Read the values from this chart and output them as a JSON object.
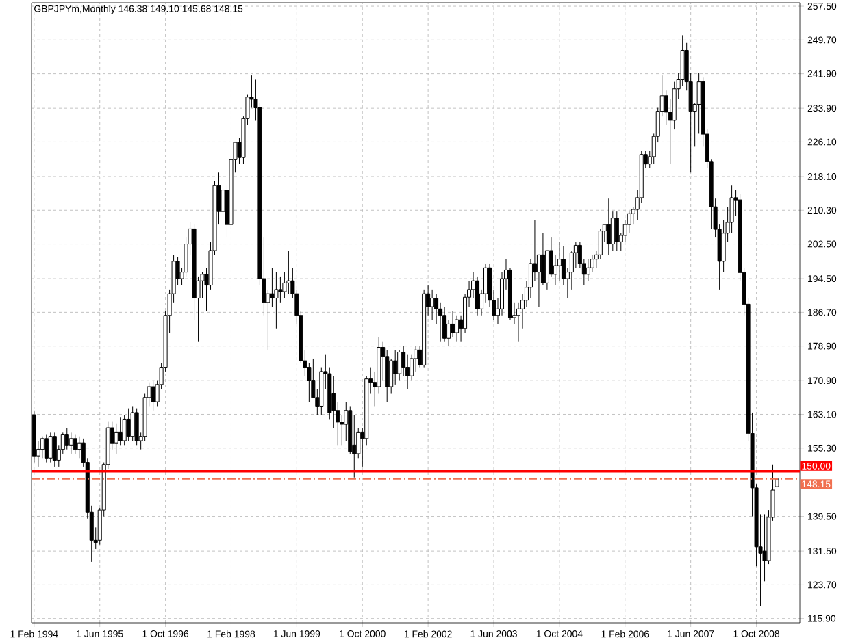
{
  "chart_data": {
    "type": "candlestick",
    "title": "GBPJPYm,Monthly  146.38 149.10 145.68 148.15",
    "x": [
      "1994-02",
      "1994-03",
      "1994-04",
      "1994-05",
      "1994-06",
      "1994-07",
      "1994-08",
      "1994-09",
      "1994-10",
      "1994-11",
      "1994-12",
      "1995-01",
      "1995-02",
      "1995-03",
      "1995-04",
      "1995-05",
      "1995-06",
      "1995-07",
      "1995-08",
      "1995-09",
      "1995-10",
      "1995-11",
      "1995-12",
      "1996-01",
      "1996-02",
      "1996-03",
      "1996-04",
      "1996-05",
      "1996-06",
      "1996-07",
      "1996-08",
      "1996-09",
      "1996-10",
      "1996-11",
      "1996-12",
      "1997-01",
      "1997-02",
      "1997-03",
      "1997-04",
      "1997-05",
      "1997-06",
      "1997-07",
      "1997-08",
      "1997-09",
      "1997-10",
      "1997-11",
      "1997-12",
      "1998-01",
      "1998-02",
      "1998-03",
      "1998-04",
      "1998-05",
      "1998-06",
      "1998-07",
      "1998-08",
      "1998-09",
      "1998-10",
      "1998-11",
      "1998-12",
      "1999-01",
      "1999-02",
      "1999-03",
      "1999-04",
      "1999-05",
      "1999-06",
      "1999-07",
      "1999-08",
      "1999-09",
      "1999-10",
      "1999-11",
      "1999-12",
      "2000-01",
      "2000-02",
      "2000-03",
      "2000-04",
      "2000-05",
      "2000-06",
      "2000-07",
      "2000-08",
      "2000-09",
      "2000-10",
      "2000-11",
      "2000-12",
      "2001-01",
      "2001-02",
      "2001-03",
      "2001-04",
      "2001-05",
      "2001-06",
      "2001-07",
      "2001-08",
      "2001-09",
      "2001-10",
      "2001-11",
      "2001-12",
      "2002-01",
      "2002-02",
      "2002-03",
      "2002-04",
      "2002-05",
      "2002-06",
      "2002-07",
      "2002-08",
      "2002-09",
      "2002-10",
      "2002-11",
      "2002-12",
      "2003-01",
      "2003-02",
      "2003-03",
      "2003-04",
      "2003-05",
      "2003-06",
      "2003-07",
      "2003-08",
      "2003-09",
      "2003-10",
      "2003-11",
      "2003-12",
      "2004-01",
      "2004-02",
      "2004-03",
      "2004-04",
      "2004-05",
      "2004-06",
      "2004-07",
      "2004-08",
      "2004-09",
      "2004-10",
      "2004-11",
      "2004-12",
      "2005-01",
      "2005-02",
      "2005-03",
      "2005-04",
      "2005-05",
      "2005-06",
      "2005-07",
      "2005-08",
      "2005-09",
      "2005-10",
      "2005-11",
      "2005-12",
      "2006-01",
      "2006-02",
      "2006-03",
      "2006-04",
      "2006-05",
      "2006-06",
      "2006-07",
      "2006-08",
      "2006-09",
      "2006-10",
      "2006-11",
      "2006-12",
      "2007-01",
      "2007-02",
      "2007-03",
      "2007-04",
      "2007-05",
      "2007-06",
      "2007-07",
      "2007-08",
      "2007-09",
      "2007-10",
      "2007-11",
      "2007-12",
      "2008-01",
      "2008-02",
      "2008-03",
      "2008-04",
      "2008-05",
      "2008-06",
      "2008-07",
      "2008-08",
      "2008-09",
      "2008-10",
      "2008-11",
      "2008-12",
      "2009-01",
      "2009-02",
      "2009-03"
    ],
    "ohlc": [
      [
        163,
        164,
        152,
        153.5
      ],
      [
        153.5,
        157,
        151,
        155
      ],
      [
        155,
        158,
        153,
        157.5
      ],
      [
        157.5,
        158.5,
        152,
        153
      ],
      [
        153,
        159,
        152,
        158
      ],
      [
        158,
        159,
        151,
        152.5
      ],
      [
        152.5,
        156,
        151,
        155
      ],
      [
        155,
        159,
        154,
        158.5
      ],
      [
        158.5,
        160,
        155,
        156
      ],
      [
        156,
        159,
        154,
        157.5
      ],
      [
        157.5,
        158.5,
        154,
        155
      ],
      [
        155,
        158,
        153,
        156.5
      ],
      [
        156.5,
        157.5,
        151,
        152
      ],
      [
        152,
        153,
        139,
        140.5
      ],
      [
        140.5,
        142,
        129,
        134
      ],
      [
        134,
        137,
        132,
        133.5
      ],
      [
        134,
        141.5,
        133,
        141
      ],
      [
        141,
        152,
        139.5,
        151.5
      ],
      [
        151.5,
        161.5,
        150.5,
        160
      ],
      [
        160,
        161.5,
        155,
        156.5
      ],
      [
        156.5,
        161,
        154,
        159
      ],
      [
        159,
        162.5,
        156,
        157
      ],
      [
        157,
        163,
        156,
        162
      ],
      [
        162,
        164.5,
        157,
        158
      ],
      [
        158,
        165,
        157,
        163.5
      ],
      [
        163.5,
        164.5,
        156,
        157
      ],
      [
        157,
        159,
        155,
        158
      ],
      [
        158,
        168,
        157,
        167
      ],
      [
        167,
        170.5,
        165,
        169.5
      ],
      [
        169.5,
        171,
        164,
        166
      ],
      [
        166,
        171,
        165,
        170
      ],
      [
        170,
        175,
        169,
        174
      ],
      [
        174,
        187,
        173,
        186
      ],
      [
        186,
        192,
        182,
        191
      ],
      [
        191,
        200,
        189,
        198.5
      ],
      [
        198.5,
        199.5,
        193,
        194.5
      ],
      [
        194.5,
        197,
        193,
        196
      ],
      [
        196,
        204,
        195,
        202.5
      ],
      [
        202.5,
        207.5,
        200,
        206
      ],
      [
        206,
        207,
        185,
        190
      ],
      [
        190,
        195,
        180,
        194
      ],
      [
        194,
        196,
        190,
        195.5
      ],
      [
        195.5,
        197,
        187,
        193
      ],
      [
        193,
        203,
        192,
        201
      ],
      [
        201,
        217,
        200,
        216
      ],
      [
        216,
        219,
        207,
        210
      ],
      [
        210,
        217,
        208,
        215
      ],
      [
        215,
        216,
        204,
        207
      ],
      [
        207,
        223,
        206,
        222
      ],
      [
        222,
        226,
        219,
        226
      ],
      [
        226,
        227,
        221,
        222.5
      ],
      [
        222.5,
        232,
        221,
        231.5
      ],
      [
        231.5,
        237,
        230,
        236.5
      ],
      [
        236.5,
        241.5,
        234,
        236
      ],
      [
        236,
        240.5,
        231,
        234
      ],
      [
        234,
        235,
        193,
        194.5
      ],
      [
        194.5,
        204,
        186,
        189
      ],
      [
        189,
        192,
        178,
        191
      ],
      [
        191,
        197,
        188,
        190
      ],
      [
        190,
        196,
        183,
        192
      ],
      [
        192,
        195,
        189,
        191.5
      ],
      [
        191.5,
        196,
        190,
        193.5
      ],
      [
        193.5,
        201,
        191,
        194
      ],
      [
        194,
        197,
        190,
        191
      ],
      [
        191,
        192,
        184,
        186
      ],
      [
        186,
        187,
        175,
        175.5
      ],
      [
        175.5,
        178,
        172,
        174
      ],
      [
        174,
        175,
        166,
        171
      ],
      [
        171,
        176,
        167,
        167
      ],
      [
        167,
        169,
        163,
        165
      ],
      [
        165,
        174,
        163,
        173
      ],
      [
        173,
        177,
        169,
        172.5
      ],
      [
        172.5,
        174,
        162,
        163.5
      ],
      [
        168,
        172,
        160,
        164
      ],
      [
        164,
        166,
        156,
        161.3
      ],
      [
        161.3,
        163,
        156,
        160.8
      ],
      [
        160.8,
        166,
        157,
        164
      ],
      [
        164,
        165,
        154,
        154.5
      ],
      [
        156,
        163,
        148.5,
        154
      ],
      [
        154,
        160,
        153,
        159
      ],
      [
        159,
        160,
        151,
        157.5
      ],
      [
        157.5,
        172,
        156,
        171.3
      ],
      [
        171.3,
        174,
        168,
        170.5
      ],
      [
        170.5,
        173,
        165,
        169.5
      ],
      [
        169.5,
        181,
        168,
        178.6
      ],
      [
        178.6,
        180,
        171,
        176.5
      ],
      [
        176.5,
        178,
        166,
        169.5
      ],
      [
        169.5,
        176,
        168,
        175.5
      ],
      [
        175.5,
        178,
        170,
        172.5
      ],
      [
        172.5,
        178,
        171,
        177.5
      ],
      [
        177.5,
        179,
        172,
        174
      ],
      [
        174,
        177,
        169,
        172
      ],
      [
        172,
        177,
        171,
        176
      ],
      [
        176,
        179,
        173,
        178
      ],
      [
        178,
        179,
        174,
        174.5
      ],
      [
        174.5,
        192,
        174,
        191
      ],
      [
        191,
        193,
        186,
        188
      ],
      [
        188,
        192,
        185,
        190
      ],
      [
        190,
        191,
        184,
        187.5
      ],
      [
        187.5,
        189,
        180,
        186
      ],
      [
        186,
        188,
        180,
        180.7
      ],
      [
        180.7,
        185,
        179,
        184
      ],
      [
        184,
        187,
        181,
        182
      ],
      [
        182,
        186,
        180,
        185
      ],
      [
        185,
        186,
        180,
        183
      ],
      [
        183,
        191,
        182,
        190.2
      ],
      [
        190.2,
        194,
        188,
        192
      ],
      [
        192,
        196,
        190,
        194
      ],
      [
        194,
        195,
        186,
        187.5
      ],
      [
        187.5,
        192,
        186,
        191
      ],
      [
        191,
        198,
        189,
        197
      ],
      [
        197,
        198,
        188,
        189.5
      ],
      [
        189.5,
        192,
        185,
        186
      ],
      [
        186,
        190,
        184,
        187.5
      ],
      [
        187.5,
        196,
        186,
        194.5
      ],
      [
        194.5,
        199,
        192,
        196.5
      ],
      [
        196.5,
        197,
        185,
        185.5
      ],
      [
        185.5,
        189,
        184,
        186
      ],
      [
        186,
        189,
        180,
        187.5
      ],
      [
        187.5,
        191,
        183,
        189.5
      ],
      [
        189.5,
        194,
        188,
        192.5
      ],
      [
        192.5,
        199,
        190,
        198
      ],
      [
        198,
        208,
        194,
        196
      ],
      [
        196,
        200,
        188,
        200
      ],
      [
        200,
        205,
        193,
        193.5
      ],
      [
        193.5,
        201,
        192,
        201
      ],
      [
        201,
        204,
        195,
        195.5
      ],
      [
        195.5,
        200,
        193,
        197.5
      ],
      [
        197.5,
        203,
        194,
        199
      ],
      [
        199,
        202,
        193,
        194.5
      ],
      [
        194.5,
        197,
        190,
        196
      ],
      [
        196,
        201,
        192,
        200.5
      ],
      [
        200.5,
        203,
        197,
        202.2
      ],
      [
        202.2,
        203,
        197,
        198
      ],
      [
        198,
        199,
        193,
        195.5
      ],
      [
        195.5,
        199,
        194,
        197
      ],
      [
        197,
        200,
        196,
        199
      ],
      [
        199,
        201,
        197,
        200
      ],
      [
        200,
        206,
        199,
        205.5
      ],
      [
        205.5,
        207,
        203,
        207
      ],
      [
        207,
        213,
        200,
        202.5
      ],
      [
        202.5,
        210,
        201,
        208.5
      ],
      [
        208.5,
        210,
        201,
        203
      ],
      [
        203,
        205,
        201,
        204.5
      ],
      [
        204.5,
        208,
        203,
        207
      ],
      [
        207,
        210,
        205,
        209.5
      ],
      [
        209.5,
        211,
        207,
        210.5
      ],
      [
        210.5,
        215,
        208,
        213.2
      ],
      [
        213.2,
        224,
        212,
        223.2
      ],
      [
        223.2,
        224,
        220,
        221
      ],
      [
        221,
        224,
        220,
        222.7
      ],
      [
        222.7,
        228,
        221,
        227.4
      ],
      [
        227.4,
        234,
        226,
        233.2
      ],
      [
        233.2,
        241.5,
        232,
        236.8
      ],
      [
        236.8,
        238,
        230,
        233
      ],
      [
        233,
        236,
        221,
        231.1
      ],
      [
        231.1,
        240,
        229,
        238.4
      ],
      [
        238.4,
        242,
        236,
        240.5
      ],
      [
        240.5,
        250.8,
        239,
        247.3
      ],
      [
        247.3,
        249,
        238,
        240
      ],
      [
        240,
        242,
        219,
        233.2
      ],
      [
        233.2,
        235,
        225,
        234.8
      ],
      [
        234.8,
        242,
        228,
        240
      ],
      [
        240,
        241,
        225,
        227.9
      ],
      [
        227.9,
        229,
        220,
        221.6
      ],
      [
        221.6,
        222,
        206,
        211.1
      ],
      [
        211.1,
        213,
        204,
        205.9
      ],
      [
        205.9,
        207,
        192,
        198.5
      ],
      [
        198.5,
        208,
        196,
        205
      ],
      [
        205,
        211,
        203,
        207.5
      ],
      [
        207.5,
        216,
        205,
        213.2
      ],
      [
        213.2,
        215,
        209,
        212.7
      ],
      [
        212.7,
        214,
        194,
        195.9
      ],
      [
        195.9,
        197,
        186,
        188.6
      ],
      [
        188.6,
        190,
        157,
        158.7
      ],
      [
        158.7,
        163.5,
        139.5,
        146.1
      ],
      [
        146.1,
        147,
        128,
        132.5
      ],
      [
        132.5,
        140,
        118.8,
        131
      ],
      [
        131.5,
        140,
        124.5,
        129.3
      ],
      [
        129.3,
        141,
        128.5,
        139.3
      ],
      [
        139.3,
        151.5,
        138.5,
        145.6
      ],
      [
        146.38,
        149.1,
        145.68,
        148.15
      ]
    ],
    "xlim": [
      "1994-01-12",
      "2009-08-19"
    ],
    "ylim": [
      114.9,
      258.3
    ],
    "xticks": [
      {
        "value": "1994-02-01",
        "label": "1 Feb 1994"
      },
      {
        "value": "1995-06-01",
        "label": "1 Jun 1995"
      },
      {
        "value": "1996-10-01",
        "label": "1 Oct 1996"
      },
      {
        "value": "1998-02-01",
        "label": "1 Feb 1998"
      },
      {
        "value": "1999-06-01",
        "label": "1 Jun 1999"
      },
      {
        "value": "2000-10-01",
        "label": "1 Oct 2000"
      },
      {
        "value": "2002-02-01",
        "label": "1 Feb 2002"
      },
      {
        "value": "2003-06-01",
        "label": "1 Jun 2003"
      },
      {
        "value": "2004-10-01",
        "label": "1 Oct 2004"
      },
      {
        "value": "2006-02-01",
        "label": "1 Feb 2006"
      },
      {
        "value": "2007-06-01",
        "label": "1 Jun 2007"
      },
      {
        "value": "2008-10-01",
        "label": "1 Oct 2008"
      }
    ],
    "yticks": [
      {
        "value": 115.9,
        "label": "115.90"
      },
      {
        "value": 123.7,
        "label": "123.70"
      },
      {
        "value": 131.5,
        "label": "131.50"
      },
      {
        "value": 139.5,
        "label": "139.50"
      },
      {
        "value": 155.3,
        "label": "155.30"
      },
      {
        "value": 163.1,
        "label": "163.10"
      },
      {
        "value": 170.9,
        "label": "170.90"
      },
      {
        "value": 178.9,
        "label": "178.90"
      },
      {
        "value": 186.7,
        "label": "186.70"
      },
      {
        "value": 194.5,
        "label": "194.50"
      },
      {
        "value": 202.5,
        "label": "202.50"
      },
      {
        "value": 210.3,
        "label": "210.30"
      },
      {
        "value": 218.1,
        "label": "218.10"
      },
      {
        "value": 226.1,
        "label": "226.10"
      },
      {
        "value": 233.9,
        "label": "233.90"
      },
      {
        "value": 241.9,
        "label": "241.90"
      },
      {
        "value": 249.7,
        "label": "249.70"
      },
      {
        "value": 257.5,
        "label": "257.50"
      }
    ],
    "grid": true,
    "ref_lines": [
      {
        "axis": "y",
        "value": 150,
        "label": "150.00",
        "color": "#ff0000",
        "line_style": "solid"
      },
      {
        "axis": "y",
        "value": 148.15,
        "label": "148.15",
        "color": "#f07050",
        "line_style": "dashed"
      }
    ]
  }
}
